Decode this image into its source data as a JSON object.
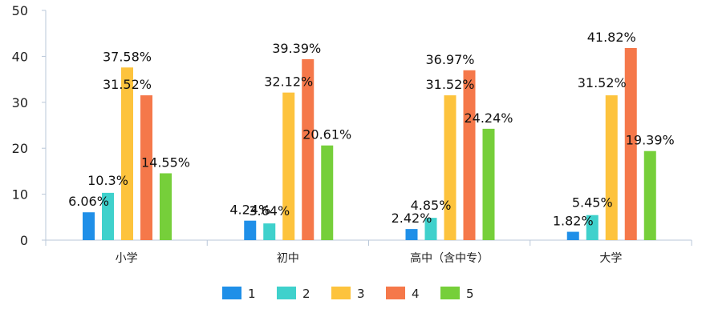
{
  "chart_data": {
    "type": "bar",
    "categories": [
      "小学",
      "初中",
      "高中（含中专）",
      "大学"
    ],
    "ylim": [
      0,
      50
    ],
    "yticks": [
      0,
      10,
      20,
      30,
      40,
      50
    ],
    "grid": false,
    "legend_position": "bottom",
    "series": [
      {
        "name": "1",
        "color": "#1f8fe8",
        "values": [
          6.06,
          4.24,
          2.42,
          1.82
        ],
        "labels": [
          "6.06%",
          "4.24%",
          "2.42%",
          "1.82%"
        ]
      },
      {
        "name": "2",
        "color": "#3fd1cc",
        "values": [
          10.3,
          3.64,
          4.85,
          5.45
        ],
        "labels": [
          "10.3%",
          "3.64%",
          "4.85%",
          "5.45%"
        ]
      },
      {
        "name": "3",
        "color": "#fdc33d",
        "values": [
          37.58,
          32.12,
          31.52,
          31.52
        ],
        "labels": [
          "37.58%",
          "32.12%",
          "31.52%",
          "31.52%"
        ]
      },
      {
        "name": "4",
        "color": "#f5784a",
        "values": [
          31.52,
          39.39,
          36.97,
          41.82
        ],
        "labels": [
          "31.52%",
          "39.39%",
          "36.97%",
          "41.82%"
        ]
      },
      {
        "name": "5",
        "color": "#76cf3a",
        "values": [
          14.55,
          20.61,
          24.24,
          19.39
        ],
        "labels": [
          "14.55%",
          "20.61%",
          "24.24%",
          "19.39%"
        ]
      }
    ]
  }
}
